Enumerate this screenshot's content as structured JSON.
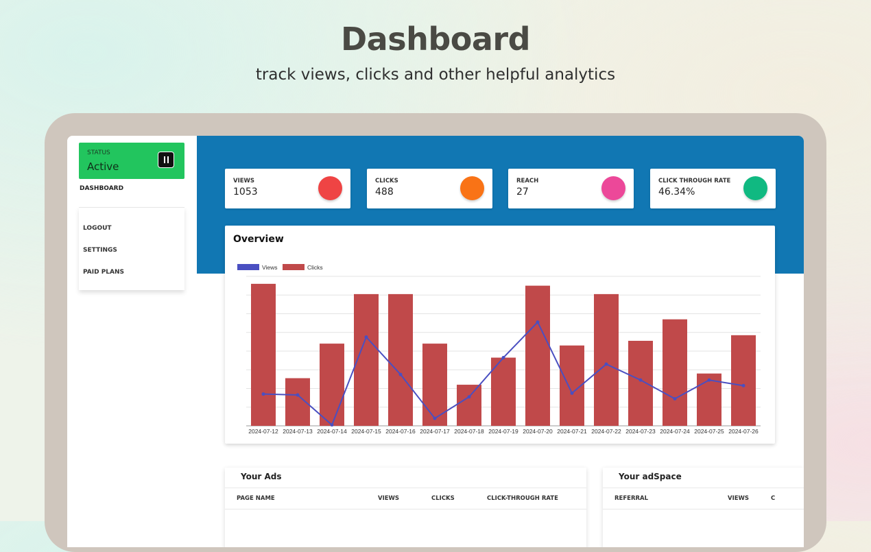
{
  "hero": {
    "title": "Dashboard",
    "subtitle": "track views, clicks and other helpful analytics"
  },
  "sidebar": {
    "status_label": "STATUS",
    "status_value": "Active",
    "dashboard_label": "DASHBOARD",
    "items": [
      {
        "label": "LOGOUT"
      },
      {
        "label": "SETTINGS"
      },
      {
        "label": "PAID PLANS"
      }
    ]
  },
  "stats": [
    {
      "label": "VIEWS",
      "value": "1053",
      "color": "#ef4444"
    },
    {
      "label": "CLICKS",
      "value": "488",
      "color": "#f97316"
    },
    {
      "label": "REACH",
      "value": "27",
      "color": "#ec4899"
    },
    {
      "label": "CLICK THROUGH RATE",
      "value": "46.34%",
      "color": "#10b981"
    }
  ],
  "overview": {
    "title": "Overview"
  },
  "chart_data": {
    "type": "bar",
    "categories": [
      "2024-07-12",
      "2024-07-13",
      "2024-07-14",
      "2024-07-15",
      "2024-07-16",
      "2024-07-17",
      "2024-07-18",
      "2024-07-19",
      "2024-07-20",
      "2024-07-21",
      "2024-07-22",
      "2024-07-23",
      "2024-07-24",
      "2024-07-25",
      "2024-07-26"
    ],
    "series": [
      {
        "name": "Views",
        "type": "line",
        "color": "#4a4fc1",
        "values": [
          17,
          16.5,
          0.5,
          47.5,
          27.5,
          4,
          15.5,
          36.5,
          55.5,
          17.5,
          33,
          24.5,
          14.5,
          24.5,
          21.5
        ]
      },
      {
        "name": "Clicks",
        "type": "bar",
        "color": "#c0494a",
        "values": [
          76,
          25.5,
          44,
          70.5,
          70.5,
          44,
          22,
          36.5,
          75,
          43,
          70.5,
          45.5,
          57,
          28,
          48.5
        ]
      }
    ],
    "ylim": [
      0,
      80
    ],
    "grid": true,
    "legend": "top-left"
  },
  "tables": {
    "ads": {
      "title": "Your Ads",
      "columns": [
        "PAGE NAME",
        "VIEWS",
        "CLICKS",
        "CLICK-THROUGH RATE"
      ]
    },
    "adspace": {
      "title": "Your adSpace",
      "columns": [
        "REFERRAL",
        "VIEWS",
        "C"
      ]
    }
  }
}
